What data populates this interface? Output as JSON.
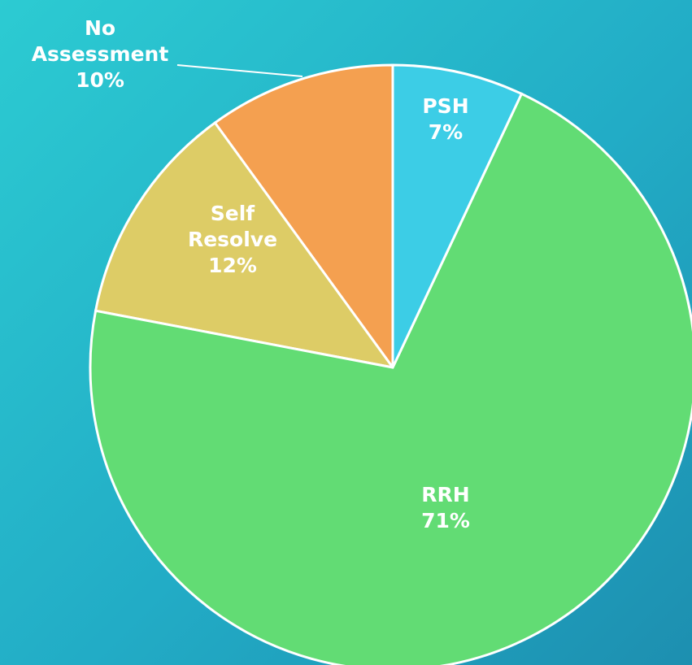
{
  "chart_data": {
    "type": "pie",
    "categories": [
      "PSH",
      "RRH",
      "Self Resolve",
      "No Assessment"
    ],
    "values": [
      7,
      71,
      12,
      10
    ],
    "value_labels": [
      "7%",
      "71%",
      "12%",
      "10%"
    ],
    "colors": [
      "#3ccde6",
      "#62dc74",
      "#ddcc66",
      "#f4a050"
    ]
  }
}
